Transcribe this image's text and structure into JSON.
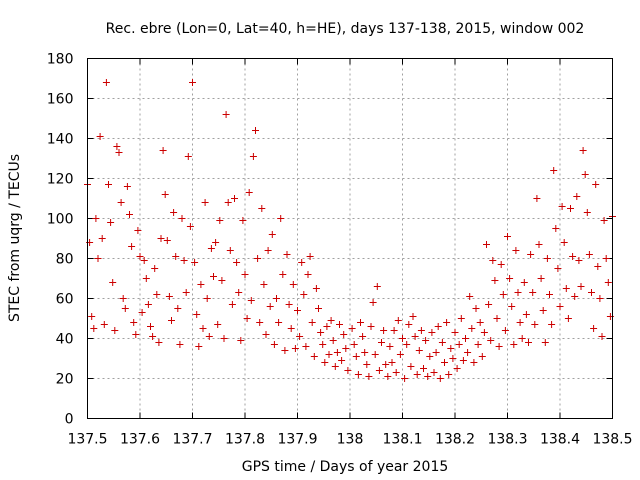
{
  "chart_data": {
    "type": "scatter",
    "title": "Rec. ebre (Lon=0, Lat=40, h=HE), days 137-138, 2015, window 002",
    "xlabel": "GPS time / Days of year 2015",
    "ylabel": "STEC from uqrg / TECUs",
    "xlim": [
      137.5,
      138.5
    ],
    "ylim": [
      0,
      180
    ],
    "xticks": [
      "137.5",
      "137.6",
      "137.7",
      "137.8",
      "137.9",
      "138",
      "138.1",
      "138.2",
      "138.3",
      "138.4",
      "138.5"
    ],
    "yticks": [
      "0",
      "20",
      "40",
      "60",
      "80",
      "100",
      "120",
      "140",
      "160",
      "180"
    ],
    "grid": true,
    "marker": "+",
    "color": "#cc0000",
    "points": [
      [
        137.5,
        117
      ],
      [
        137.504,
        88
      ],
      [
        137.508,
        51
      ],
      [
        137.512,
        45
      ],
      [
        137.516,
        100
      ],
      [
        137.52,
        80
      ],
      [
        137.524,
        141
      ],
      [
        137.528,
        90
      ],
      [
        137.532,
        47
      ],
      [
        137.536,
        168
      ],
      [
        137.54,
        117
      ],
      [
        137.544,
        98
      ],
      [
        137.548,
        68
      ],
      [
        137.552,
        44
      ],
      [
        137.556,
        136
      ],
      [
        137.56,
        133
      ],
      [
        137.564,
        108
      ],
      [
        137.568,
        60
      ],
      [
        137.572,
        55
      ],
      [
        137.576,
        116
      ],
      [
        137.58,
        102
      ],
      [
        137.584,
        86
      ],
      [
        137.588,
        48
      ],
      [
        137.592,
        42
      ],
      [
        137.596,
        94
      ],
      [
        137.6,
        81
      ],
      [
        137.604,
        53
      ],
      [
        137.608,
        79
      ],
      [
        137.612,
        70
      ],
      [
        137.616,
        57
      ],
      [
        137.62,
        46
      ],
      [
        137.624,
        41
      ],
      [
        137.628,
        75
      ],
      [
        137.632,
        62
      ],
      [
        137.636,
        38
      ],
      [
        137.64,
        90
      ],
      [
        137.644,
        134
      ],
      [
        137.648,
        112
      ],
      [
        137.652,
        89
      ],
      [
        137.656,
        61
      ],
      [
        137.66,
        49
      ],
      [
        137.664,
        103
      ],
      [
        137.668,
        81
      ],
      [
        137.672,
        55
      ],
      [
        137.676,
        37
      ],
      [
        137.68,
        100
      ],
      [
        137.684,
        79
      ],
      [
        137.688,
        63
      ],
      [
        137.692,
        131
      ],
      [
        137.696,
        96
      ],
      [
        137.7,
        168
      ],
      [
        137.704,
        78
      ],
      [
        137.708,
        52
      ],
      [
        137.712,
        36
      ],
      [
        137.716,
        67
      ],
      [
        137.72,
        45
      ],
      [
        137.724,
        108
      ],
      [
        137.728,
        60
      ],
      [
        137.732,
        41
      ],
      [
        137.736,
        85
      ],
      [
        137.74,
        71
      ],
      [
        137.744,
        88
      ],
      [
        137.748,
        47
      ],
      [
        137.752,
        99
      ],
      [
        137.756,
        69
      ],
      [
        137.76,
        40
      ],
      [
        137.764,
        152
      ],
      [
        137.768,
        108
      ],
      [
        137.772,
        84
      ],
      [
        137.776,
        57
      ],
      [
        137.78,
        110
      ],
      [
        137.784,
        78
      ],
      [
        137.788,
        63
      ],
      [
        137.792,
        39
      ],
      [
        137.796,
        99
      ],
      [
        137.8,
        72
      ],
      [
        137.804,
        50
      ],
      [
        137.808,
        113
      ],
      [
        137.812,
        59
      ],
      [
        137.816,
        131
      ],
      [
        137.82,
        144
      ],
      [
        137.824,
        80
      ],
      [
        137.828,
        48
      ],
      [
        137.832,
        105
      ],
      [
        137.836,
        67
      ],
      [
        137.84,
        42
      ],
      [
        137.844,
        84
      ],
      [
        137.848,
        56
      ],
      [
        137.852,
        92
      ],
      [
        137.856,
        37
      ],
      [
        137.86,
        60
      ],
      [
        137.864,
        48
      ],
      [
        137.868,
        100
      ],
      [
        137.872,
        72
      ],
      [
        137.876,
        34
      ],
      [
        137.88,
        82
      ],
      [
        137.884,
        57
      ],
      [
        137.888,
        45
      ],
      [
        137.892,
        67
      ],
      [
        137.896,
        35
      ],
      [
        137.9,
        54
      ],
      [
        137.904,
        41
      ],
      [
        137.908,
        78
      ],
      [
        137.912,
        62
      ],
      [
        137.916,
        36
      ],
      [
        137.92,
        72
      ],
      [
        137.924,
        81
      ],
      [
        137.928,
        48
      ],
      [
        137.932,
        31
      ],
      [
        137.936,
        65
      ],
      [
        137.94,
        55
      ],
      [
        137.944,
        43
      ],
      [
        137.948,
        37
      ],
      [
        137.952,
        28
      ],
      [
        137.956,
        46
      ],
      [
        137.96,
        32
      ],
      [
        137.964,
        49
      ],
      [
        137.968,
        39
      ],
      [
        137.972,
        26
      ],
      [
        137.976,
        33
      ],
      [
        137.98,
        47
      ],
      [
        137.984,
        29
      ],
      [
        137.988,
        42
      ],
      [
        137.992,
        35
      ],
      [
        137.996,
        24
      ],
      [
        138.004,
        45
      ],
      [
        138.008,
        37
      ],
      [
        138.012,
        31
      ],
      [
        138.016,
        22
      ],
      [
        138.02,
        48
      ],
      [
        138.024,
        41
      ],
      [
        138.028,
        33
      ],
      [
        138.032,
        27
      ],
      [
        138.036,
        21
      ],
      [
        138.04,
        46
      ],
      [
        138.044,
        58
      ],
      [
        138.048,
        32
      ],
      [
        138.052,
        66
      ],
      [
        138.056,
        24
      ],
      [
        138.06,
        38
      ],
      [
        138.064,
        44
      ],
      [
        138.068,
        27
      ],
      [
        138.072,
        21
      ],
      [
        138.076,
        36
      ],
      [
        138.08,
        28
      ],
      [
        138.084,
        44
      ],
      [
        138.088,
        23
      ],
      [
        138.092,
        49
      ],
      [
        138.096,
        32
      ],
      [
        138.1,
        40
      ],
      [
        138.104,
        20
      ],
      [
        138.108,
        37
      ],
      [
        138.112,
        47
      ],
      [
        138.116,
        26
      ],
      [
        138.12,
        51
      ],
      [
        138.124,
        41
      ],
      [
        138.128,
        22
      ],
      [
        138.132,
        34
      ],
      [
        138.136,
        44
      ],
      [
        138.14,
        25
      ],
      [
        138.144,
        39
      ],
      [
        138.148,
        21
      ],
      [
        138.152,
        31
      ],
      [
        138.156,
        43
      ],
      [
        138.16,
        23
      ],
      [
        138.164,
        33
      ],
      [
        138.168,
        46
      ],
      [
        138.172,
        20
      ],
      [
        138.176,
        38
      ],
      [
        138.18,
        28
      ],
      [
        138.184,
        48
      ],
      [
        138.188,
        22
      ],
      [
        138.192,
        35
      ],
      [
        138.196,
        30
      ],
      [
        138.2,
        43
      ],
      [
        138.204,
        25
      ],
      [
        138.208,
        37
      ],
      [
        138.212,
        50
      ],
      [
        138.216,
        29
      ],
      [
        138.22,
        40
      ],
      [
        138.224,
        33
      ],
      [
        138.228,
        61
      ],
      [
        138.232,
        45
      ],
      [
        138.236,
        28
      ],
      [
        138.24,
        55
      ],
      [
        138.244,
        37
      ],
      [
        138.248,
        48
      ],
      [
        138.252,
        31
      ],
      [
        138.256,
        43
      ],
      [
        138.26,
        87
      ],
      [
        138.264,
        57
      ],
      [
        138.268,
        39
      ],
      [
        138.272,
        79
      ],
      [
        138.276,
        69
      ],
      [
        138.28,
        50
      ],
      [
        138.284,
        36
      ],
      [
        138.288,
        77
      ],
      [
        138.292,
        62
      ],
      [
        138.296,
        44
      ],
      [
        138.3,
        91
      ],
      [
        138.304,
        70
      ],
      [
        138.308,
        56
      ],
      [
        138.312,
        37
      ],
      [
        138.316,
        84
      ],
      [
        138.32,
        63
      ],
      [
        138.324,
        48
      ],
      [
        138.328,
        40
      ],
      [
        138.332,
        68
      ],
      [
        138.336,
        52
      ],
      [
        138.34,
        38
      ],
      [
        138.344,
        82
      ],
      [
        138.348,
        63
      ],
      [
        138.352,
        47
      ],
      [
        138.356,
        110
      ],
      [
        138.36,
        87
      ],
      [
        138.364,
        70
      ],
      [
        138.368,
        54
      ],
      [
        138.372,
        38
      ],
      [
        138.376,
        80
      ],
      [
        138.38,
        62
      ],
      [
        138.384,
        47
      ],
      [
        138.388,
        124
      ],
      [
        138.392,
        95
      ],
      [
        138.396,
        75
      ],
      [
        138.4,
        56
      ],
      [
        138.404,
        106
      ],
      [
        138.408,
        88
      ],
      [
        138.412,
        65
      ],
      [
        138.416,
        50
      ],
      [
        138.42,
        105
      ],
      [
        138.424,
        81
      ],
      [
        138.428,
        61
      ],
      [
        138.432,
        111
      ],
      [
        138.436,
        79
      ],
      [
        138.44,
        66
      ],
      [
        138.444,
        134
      ],
      [
        138.448,
        122
      ],
      [
        138.452,
        103
      ],
      [
        138.456,
        82
      ],
      [
        138.46,
        63
      ],
      [
        138.464,
        45
      ],
      [
        138.468,
        117
      ],
      [
        138.472,
        76
      ],
      [
        138.476,
        60
      ],
      [
        138.48,
        41
      ],
      [
        138.484,
        99
      ],
      [
        138.488,
        80
      ],
      [
        138.492,
        68
      ],
      [
        138.496,
        51
      ],
      [
        138.5,
        101
      ]
    ]
  }
}
